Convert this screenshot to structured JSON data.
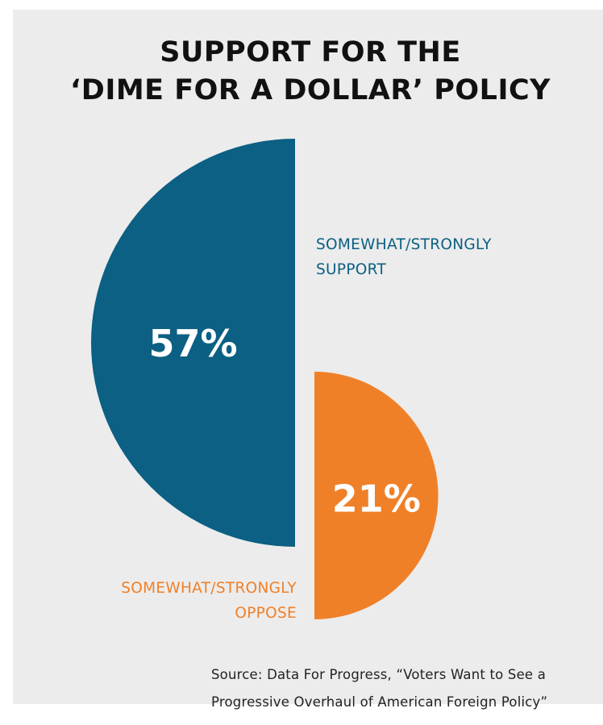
{
  "chart_data": {
    "type": "pie",
    "title_lines": [
      "SUPPORT FOR THE",
      "‘DIME FOR A DOLLAR’ POLICY"
    ],
    "slices": [
      {
        "label_lines": [
          "SOMEWHAT/STRONGLY",
          "SUPPORT"
        ],
        "value": 57,
        "value_label": "57%",
        "color": "#0b6083"
      },
      {
        "label_lines": [
          "SOMEWHAT/STRONGLY",
          "OPPOSE"
        ],
        "value": 21,
        "value_label": "21%",
        "color": "#f08028"
      }
    ]
  },
  "source_lines": [
    "Source: Data For Progress, “Voters Want to See a",
    "Progressive Overhaul of American Foreign Policy”"
  ],
  "colors": {
    "background": "#ececec",
    "support": "#0b6083",
    "oppose": "#f08028"
  }
}
